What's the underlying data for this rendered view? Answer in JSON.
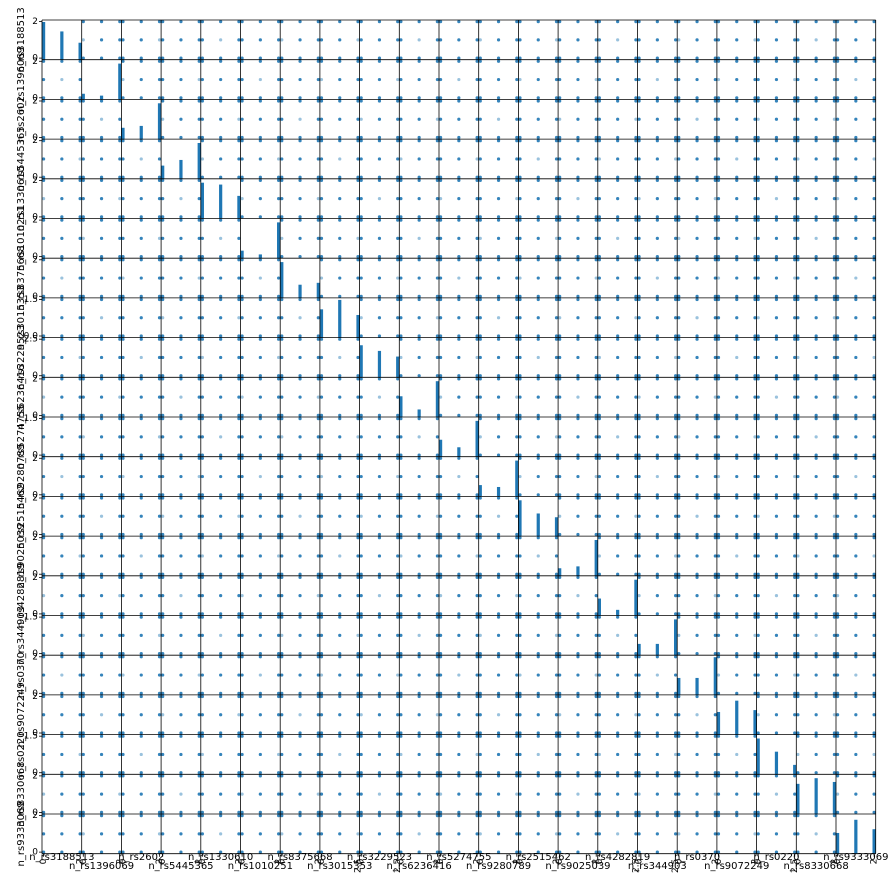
{
  "chart_data": {
    "type": "scatter",
    "subtype": "scatter_matrix",
    "diagonal": "histogram",
    "title": "",
    "colors": {
      "points": "#1f77b4",
      "bars": "#1f77b4",
      "frame": "#000000"
    },
    "variables": [
      "n_rs3188513",
      "n_rs1396069",
      "n_rs2602",
      "n_rs5445365",
      "n_rs1330610",
      "n_rs1010251",
      "n_rs8375668",
      "n_rs3015353",
      "n_rs3229523",
      "n_rs6236416",
      "n_rs5274755",
      "n_rs9280789",
      "n_rs2515462",
      "n_rs9025039",
      "n_rs4282819",
      "n_rs344903",
      "n_rs0370",
      "n_rs9072249",
      "n_rs0220",
      "n_rs8330668",
      "n_rs9333069"
    ],
    "x_tick_labels": [
      [
        "0",
        "2"
      ],
      [
        "0",
        "2"
      ],
      [
        "0",
        "2"
      ],
      [
        "0",
        "2"
      ],
      [
        "0",
        "2"
      ],
      [
        "0",
        "2"
      ],
      [
        "0",
        "2"
      ],
      [
        "0",
        "2.5"
      ],
      [
        "0",
        "2.5"
      ],
      [
        "0",
        "2"
      ],
      [
        "0",
        "2"
      ],
      [
        "0",
        "2"
      ],
      [
        "0",
        "2"
      ],
      [
        "0",
        "2"
      ],
      [
        "0",
        "2.5"
      ],
      [
        "0",
        "2.5"
      ],
      [
        "0",
        "2"
      ],
      [
        "0",
        "2"
      ],
      [
        "0",
        "2.5"
      ],
      [
        "0",
        "2"
      ],
      [
        "0",
        "2"
      ]
    ],
    "y_tick_labels": [
      [
        "0",
        "2"
      ],
      [
        "0",
        "2"
      ],
      [
        "0",
        "2"
      ],
      [
        "0",
        "2"
      ],
      [
        "0",
        "2"
      ],
      [
        "0",
        "2"
      ],
      [
        "0",
        "2"
      ],
      [
        "0.0",
        "1.5"
      ],
      [
        "0",
        "2.5"
      ],
      [
        "0",
        "2"
      ],
      [
        "0",
        "1.5"
      ],
      [
        "0",
        "2"
      ],
      [
        "0",
        "2"
      ],
      [
        "0",
        "2"
      ],
      [
        "0",
        "2"
      ],
      [
        "0",
        "1.5"
      ],
      [
        "0",
        "2"
      ],
      [
        "0",
        "2"
      ],
      [
        "0",
        "1.5"
      ],
      [
        "0",
        "2"
      ],
      [
        "0",
        "2"
      ]
    ],
    "value_levels": [
      0,
      1,
      2
    ],
    "diagonal_hist": [
      [
        1.0,
        0.75,
        0.45
      ],
      [
        0.15,
        0.1,
        0.95
      ],
      [
        0.3,
        0.35,
        0.95
      ],
      [
        0.35,
        0.5,
        0.95
      ],
      [
        0.95,
        0.9,
        0.6
      ],
      [
        0.2,
        0.1,
        0.95
      ],
      [
        0.95,
        0.35,
        0.4
      ],
      [
        0.75,
        1.0,
        0.6
      ],
      [
        0.85,
        0.7,
        0.55
      ],
      [
        0.55,
        0.2,
        0.95
      ],
      [
        0.45,
        0.25,
        0.95
      ],
      [
        0.3,
        0.25,
        0.95
      ],
      [
        0.95,
        0.6,
        0.5
      ],
      [
        0.2,
        0.25,
        0.95
      ],
      [
        0.45,
        0.15,
        0.95
      ],
      [
        0.3,
        0.3,
        0.95
      ],
      [
        0.45,
        0.45,
        1.0
      ],
      [
        0.6,
        0.9,
        0.65
      ],
      [
        0.95,
        0.6,
        0.25
      ],
      [
        0.8,
        0.95,
        0.85
      ],
      [
        0.55,
        0.9,
        0.65
      ]
    ]
  }
}
